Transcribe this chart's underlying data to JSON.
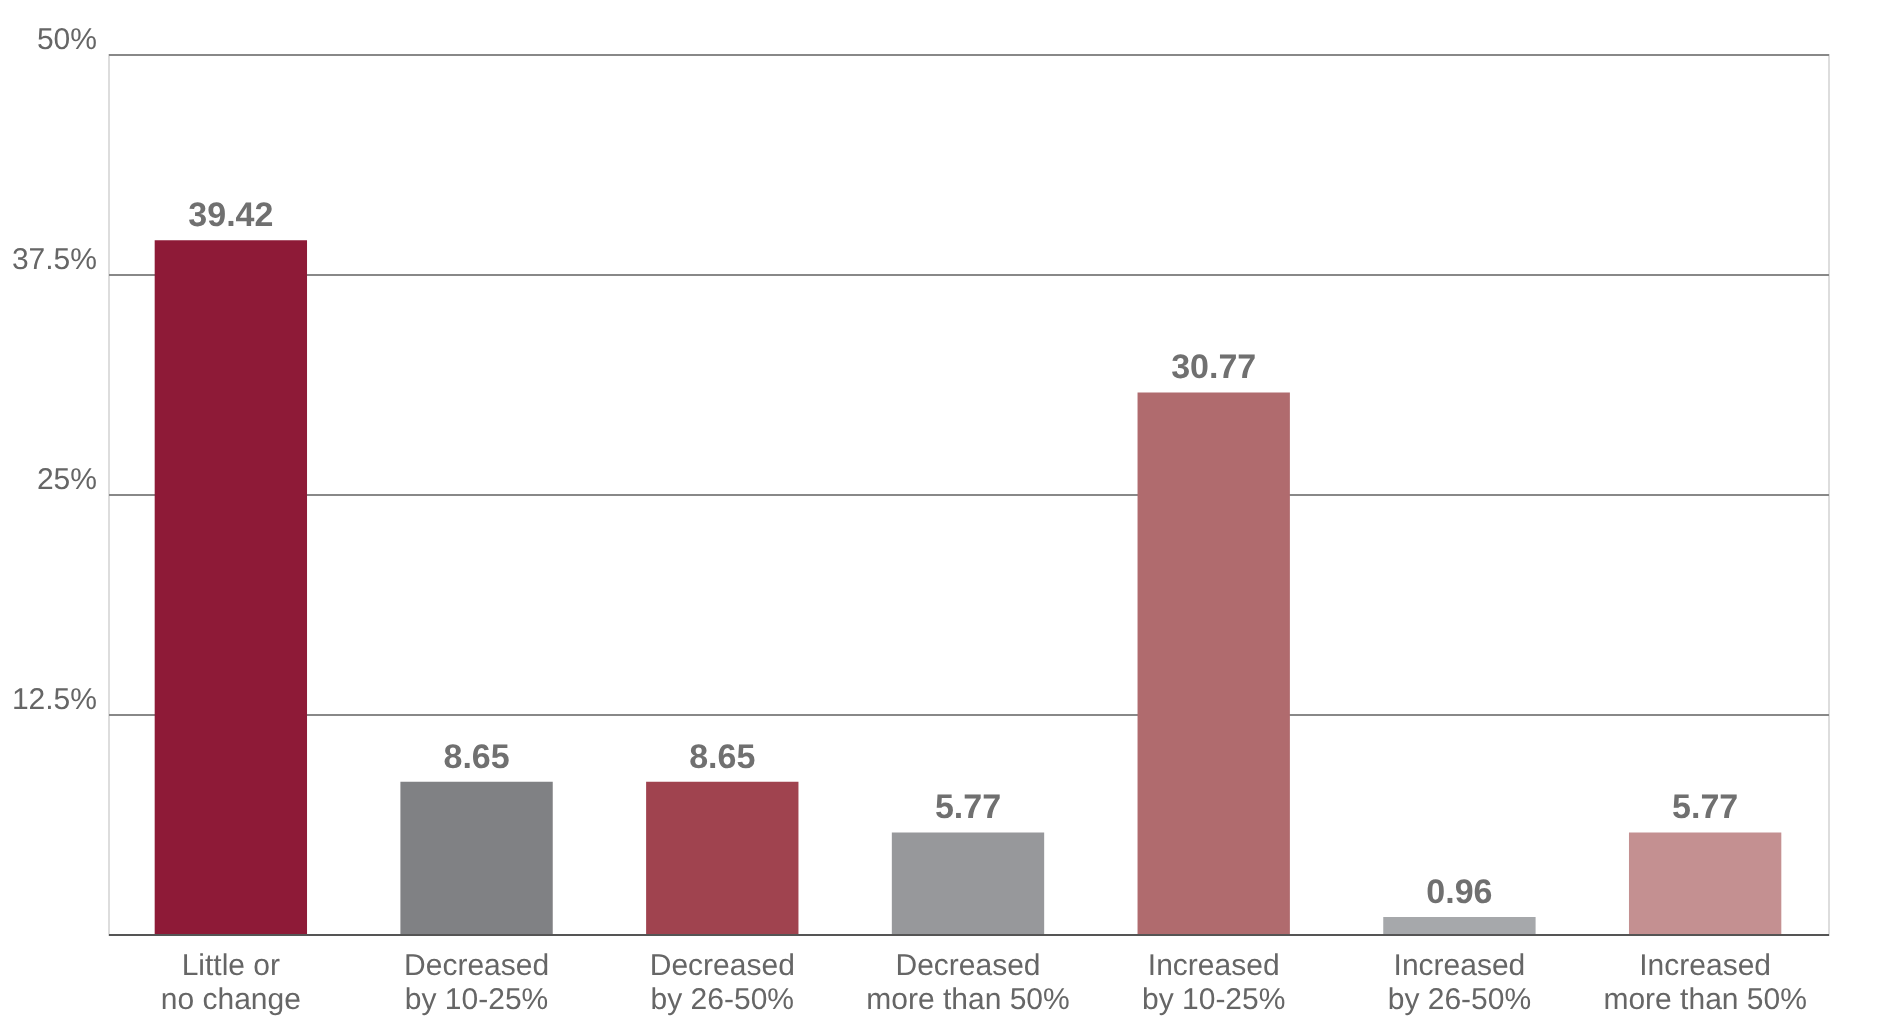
{
  "chart_data": {
    "type": "bar",
    "categories": [
      "Little or\nno change",
      "Decreased\nby 10-25%",
      "Decreased\nby 26-50%",
      "Decreased\nmore than 50%",
      "Increased\nby 10-25%",
      "Increased\nby 26-50%",
      "Increased\nmore than 50%"
    ],
    "values": [
      39.42,
      8.65,
      8.65,
      5.77,
      30.77,
      0.96,
      5.77
    ],
    "colors": [
      "#8e1a37",
      "#808184",
      "#a0434f",
      "#97989b",
      "#b06b6e",
      "#a6a8ab",
      "#c49091"
    ],
    "ylim": [
      0,
      50
    ],
    "yticks": [
      {
        "value": 0,
        "label": null
      },
      {
        "value": 12.5,
        "label": "12.5%"
      },
      {
        "value": 25,
        "label": "25%"
      },
      {
        "value": 37.5,
        "label": "37.5%"
      },
      {
        "value": 50,
        "label": "50%"
      }
    ],
    "grid": "y",
    "data_labels": true
  }
}
